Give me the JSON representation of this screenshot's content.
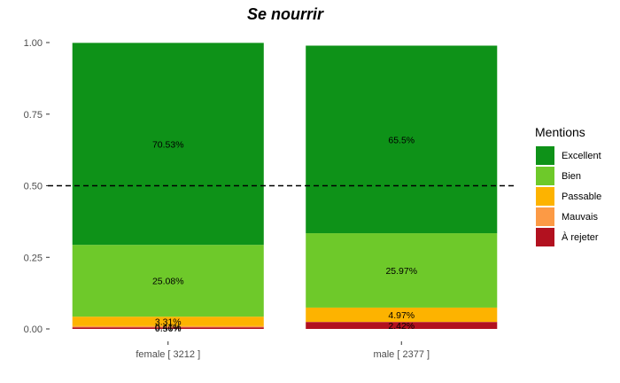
{
  "chart_data": {
    "type": "bar",
    "stacked": true,
    "title": "Se nourrir",
    "xlabel": "",
    "ylabel": "",
    "ylim": [
      0,
      1
    ],
    "yticks": [
      "0.00",
      "0.25",
      "0.50",
      "0.75",
      "1.00"
    ],
    "ytick_values": [
      0,
      0.25,
      0.5,
      0.75,
      1
    ],
    "reference_line": 0.5,
    "categories": [
      "female [ 3212 ]",
      "male [ 2377 ]"
    ],
    "legend": {
      "title": "Mentions",
      "position": "right"
    },
    "series": [
      {
        "name": "À rejeter",
        "color": "#b2111f",
        "values": [
          0.0056,
          0.0242
        ],
        "labels": [
          "0.56%",
          "2.42%"
        ]
      },
      {
        "name": "Mauvais",
        "color": "#fc9a45",
        "values": [
          0.0041,
          0.0006
        ],
        "labels": [
          "0.41%",
          ""
        ]
      },
      {
        "name": "Passable",
        "color": "#fdb300",
        "values": [
          0.0331,
          0.0497
        ],
        "labels": [
          "3.31%",
          "4.97%"
        ]
      },
      {
        "name": "Bien",
        "color": "#6ec92a",
        "values": [
          0.2508,
          0.2597
        ],
        "labels": [
          "25.08%",
          "25.97%"
        ]
      },
      {
        "name": "Excellent",
        "color": "#0e9218",
        "values": [
          0.7053,
          0.655
        ],
        "labels": [
          "70.53%",
          "65.5%"
        ]
      }
    ],
    "legend_order": [
      "Excellent",
      "Bien",
      "Passable",
      "Mauvais",
      "À rejeter"
    ]
  }
}
